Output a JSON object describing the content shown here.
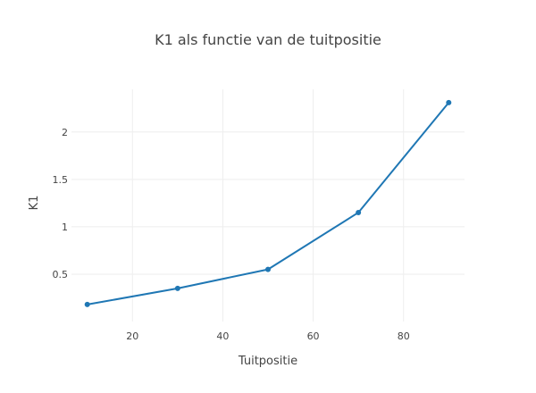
{
  "chart_data": {
    "type": "line",
    "title": "K1 als functie van de tuitpositie",
    "xlabel": "Tuitpositie",
    "ylabel": "K1",
    "xlim": [
      6.5,
      93.5
    ],
    "ylim": [
      0.0,
      2.45
    ],
    "x_ticks": [
      20,
      40,
      60,
      80
    ],
    "y_ticks": [
      0.5,
      1,
      1.5,
      2
    ],
    "x_tick_labels": [
      "20",
      "40",
      "60",
      "80"
    ],
    "y_tick_labels": [
      "0.5",
      "1",
      "1.5",
      "2"
    ],
    "grid": true,
    "series": [
      {
        "color": "#1f77b4",
        "x": [
          10,
          30,
          50,
          70,
          90
        ],
        "y": [
          0.18,
          0.35,
          0.55,
          1.15,
          2.31
        ]
      }
    ]
  }
}
